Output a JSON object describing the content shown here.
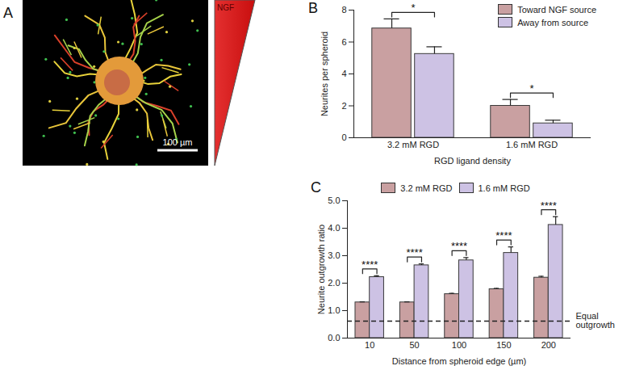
{
  "chart_data": [
    {
      "type": "image",
      "title": "A",
      "annotations": [
        "NGF",
        "100 µm"
      ]
    },
    {
      "type": "bar",
      "title": "B",
      "x_label": "RGD ligand density",
      "y_label": "Neurites per spheroid",
      "categories": [
        "3.2 mM RGD",
        "1.6 mM RGD"
      ],
      "series": [
        {
          "name": "Toward NGF source",
          "color": "#c9a0a1",
          "values": [
            6.85,
            2.0
          ],
          "errors": [
            0.6,
            0.4
          ]
        },
        {
          "name": "Away from source",
          "color": "#cdc2e4",
          "values": [
            5.25,
            0.9
          ],
          "errors": [
            0.45,
            0.2
          ]
        }
      ],
      "significance": [
        "*",
        "*"
      ],
      "ylim": [
        0,
        8
      ],
      "yticks": [
        0,
        2,
        4,
        6,
        8
      ],
      "legend": "top-right"
    },
    {
      "type": "bar",
      "title": "C",
      "x_label": "Distance from spheroid edge (µm)",
      "y_label": "Neurite outgrowth ratio",
      "categories": [
        "10",
        "50",
        "100",
        "150",
        "200"
      ],
      "series": [
        {
          "name": "3.2 mM RGD",
          "color": "#c9a0a1",
          "values": [
            1.3,
            1.3,
            1.6,
            1.78,
            2.2
          ],
          "errors": [
            0.02,
            0.02,
            0.03,
            0.03,
            0.05
          ]
        },
        {
          "name": "1.6 mM RGD",
          "color": "#cdc2e4",
          "values": [
            2.22,
            2.65,
            2.83,
            3.1,
            4.12
          ],
          "errors": [
            0.05,
            0.05,
            0.1,
            0.22,
            0.3
          ]
        }
      ],
      "significance": [
        "****",
        "****",
        "****",
        "****",
        "****"
      ],
      "reference_line": {
        "value": 0.62,
        "label": "Equal outgrowth",
        "line_style": "dashed"
      },
      "ylim": [
        0,
        5
      ],
      "yticks": [
        0,
        1,
        2,
        3,
        4,
        5
      ],
      "legend": "top"
    }
  ]
}
